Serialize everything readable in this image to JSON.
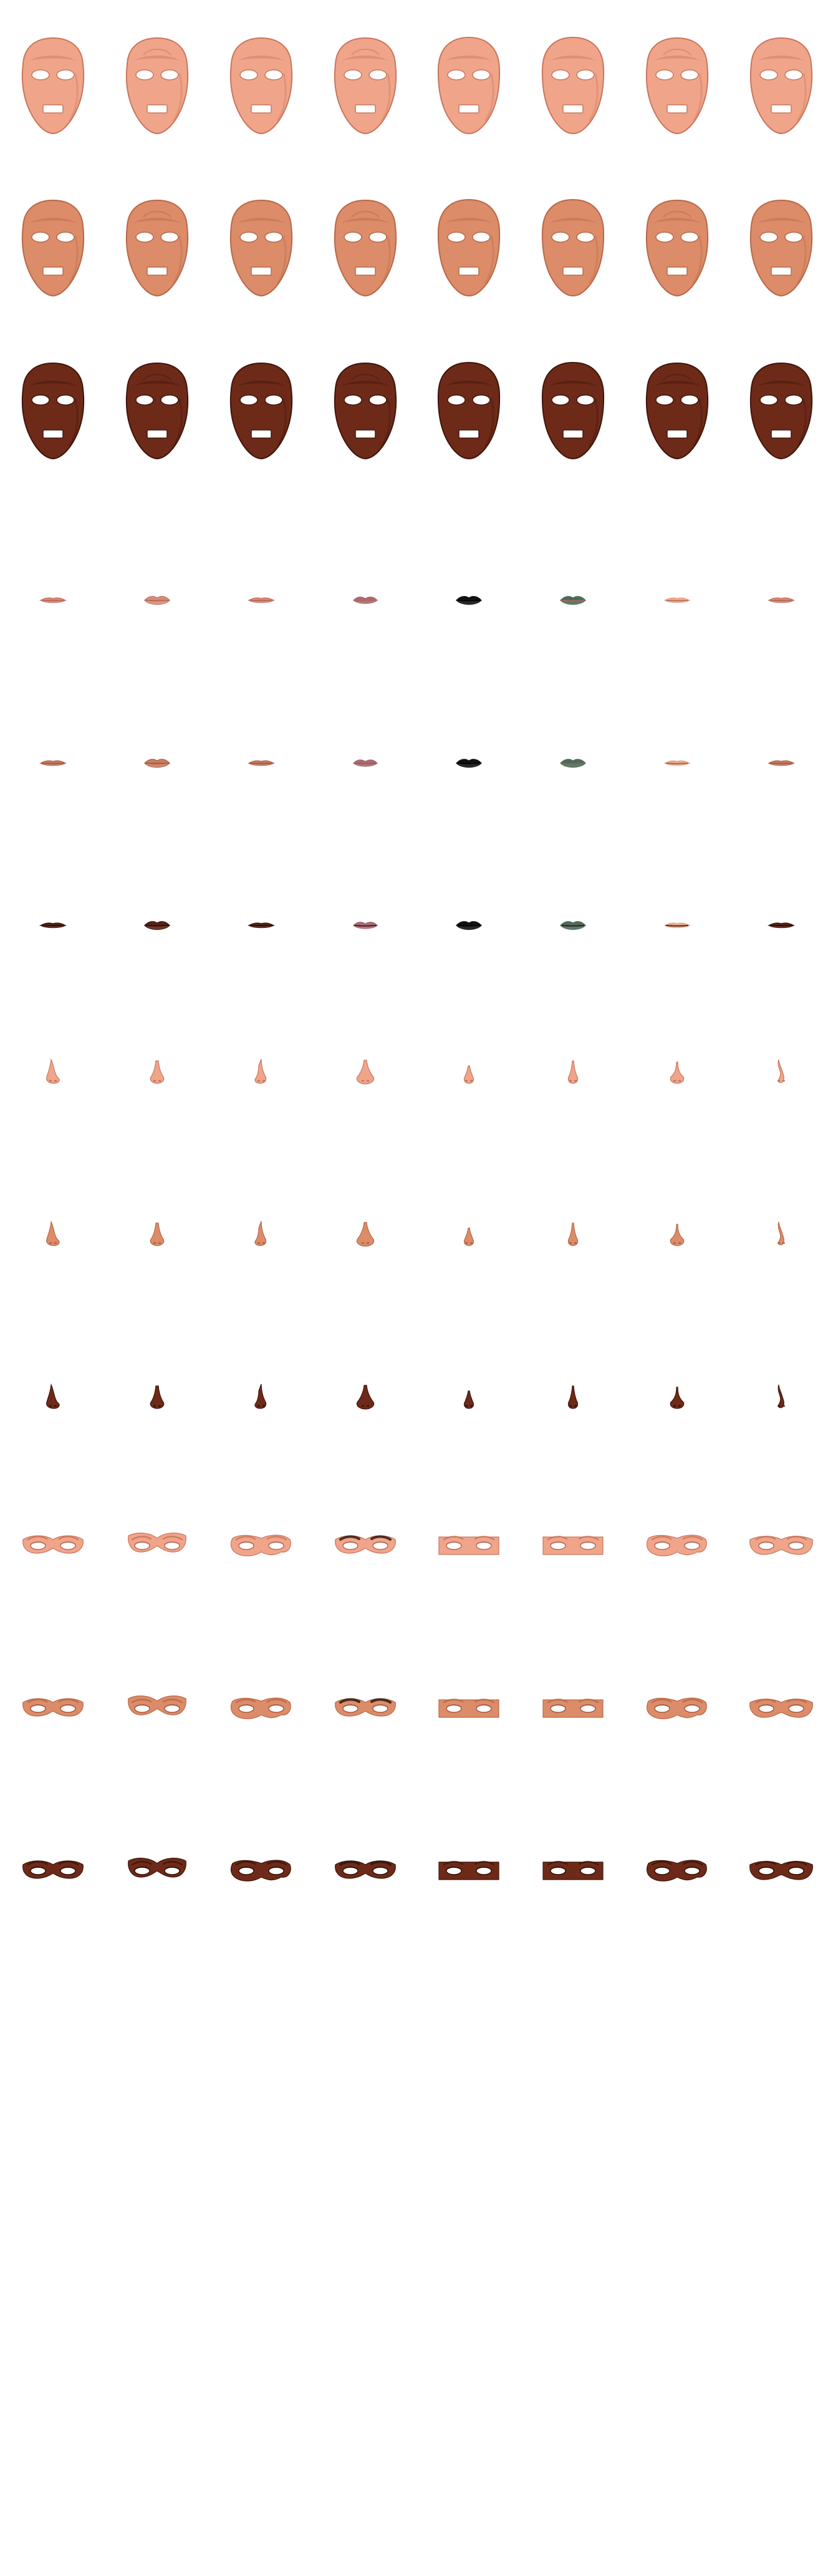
{
  "tones": {
    "light": {
      "base": "#f0a58a",
      "shade": "#c9765d",
      "lip": "#d98c78",
      "inner": "#b86553"
    },
    "medium": {
      "base": "#dc8c68",
      "shade": "#b8684a",
      "lip": "#c97c62",
      "inner": "#a4563f"
    },
    "dark": {
      "base": "#6e2a18",
      "shade": "#3f150b",
      "lip": "#5a2314",
      "inner": "#2b0d06"
    }
  },
  "rows": [
    {
      "part": "face",
      "tone": "light"
    },
    {
      "part": "face",
      "tone": "medium"
    },
    {
      "part": "face",
      "tone": "dark"
    },
    {
      "part": "lips",
      "tone": "light"
    },
    {
      "part": "lips",
      "tone": "medium"
    },
    {
      "part": "lips",
      "tone": "dark"
    },
    {
      "part": "nose",
      "tone": "light"
    },
    {
      "part": "nose",
      "tone": "medium"
    },
    {
      "part": "nose",
      "tone": "dark"
    },
    {
      "part": "eyes",
      "tone": "light"
    },
    {
      "part": "eyes",
      "tone": "medium"
    },
    {
      "part": "eyes",
      "tone": "dark"
    }
  ],
  "lip_variants": [
    {
      "style": "thin",
      "override": ""
    },
    {
      "style": "full",
      "override": ""
    },
    {
      "style": "thin",
      "override": ""
    },
    {
      "style": "bow",
      "override": "#a86a72"
    },
    {
      "style": "full",
      "override": "#111111"
    },
    {
      "style": "full",
      "override": "#4e6b5a"
    },
    {
      "style": "thin",
      "override": "#e8a88a"
    },
    {
      "style": "thin",
      "override": ""
    }
  ],
  "eye_variants": [
    "soft",
    "heavy",
    "patchy",
    "brow-dark",
    "rect",
    "rect",
    "patchy",
    "wide"
  ],
  "nose_variants": [
    "side",
    "front",
    "side-tall",
    "front-wide",
    "small",
    "small-tall",
    "wings",
    "thin"
  ],
  "face_variants": [
    "a",
    "b",
    "a",
    "b",
    "c",
    "c",
    "b",
    "a"
  ]
}
